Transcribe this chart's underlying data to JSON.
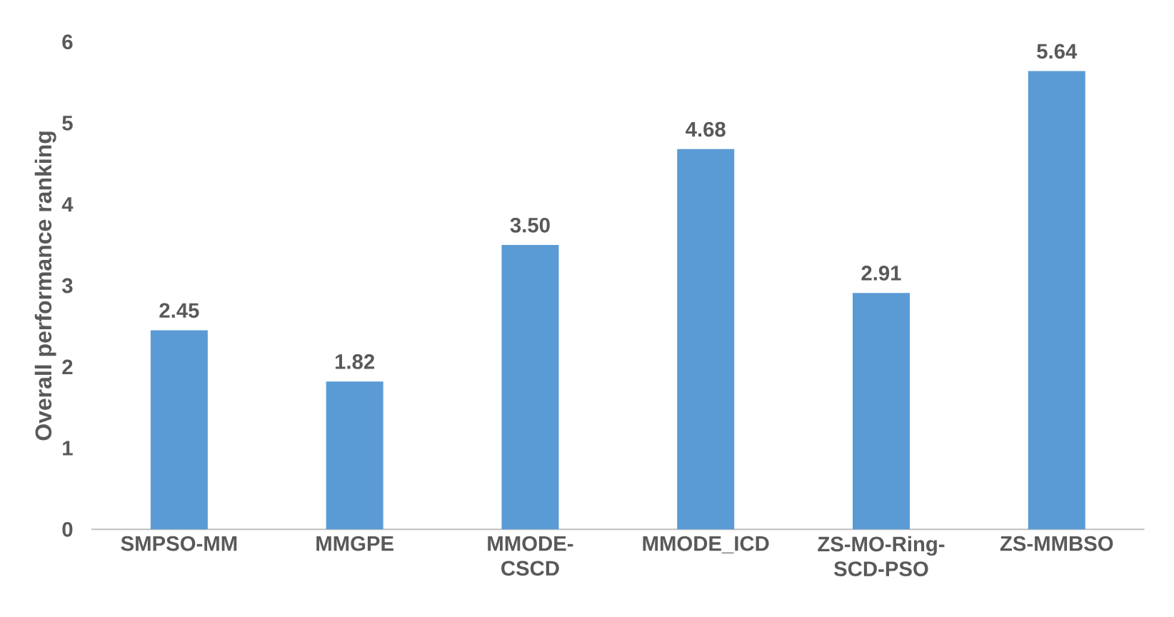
{
  "chart_data": {
    "type": "bar",
    "ylabel": "Overall performance ranking",
    "categories": [
      "SMPSO-MM",
      "MMGPE",
      "MMODE-CSCD",
      "MMODE_ICD",
      "ZS-MO-Ring-SCD-PSO",
      "ZS-MMBSO"
    ],
    "values": [
      2.45,
      1.82,
      3.5,
      4.68,
      2.91,
      5.64
    ],
    "value_labels": [
      "2.45",
      "1.82",
      "3.50",
      "4.68",
      "2.91",
      "5.64"
    ],
    "color": "#5b9bd5",
    "ylim": [
      0,
      6
    ],
    "yticks": [
      0,
      1,
      2,
      3,
      4,
      5,
      6
    ]
  }
}
